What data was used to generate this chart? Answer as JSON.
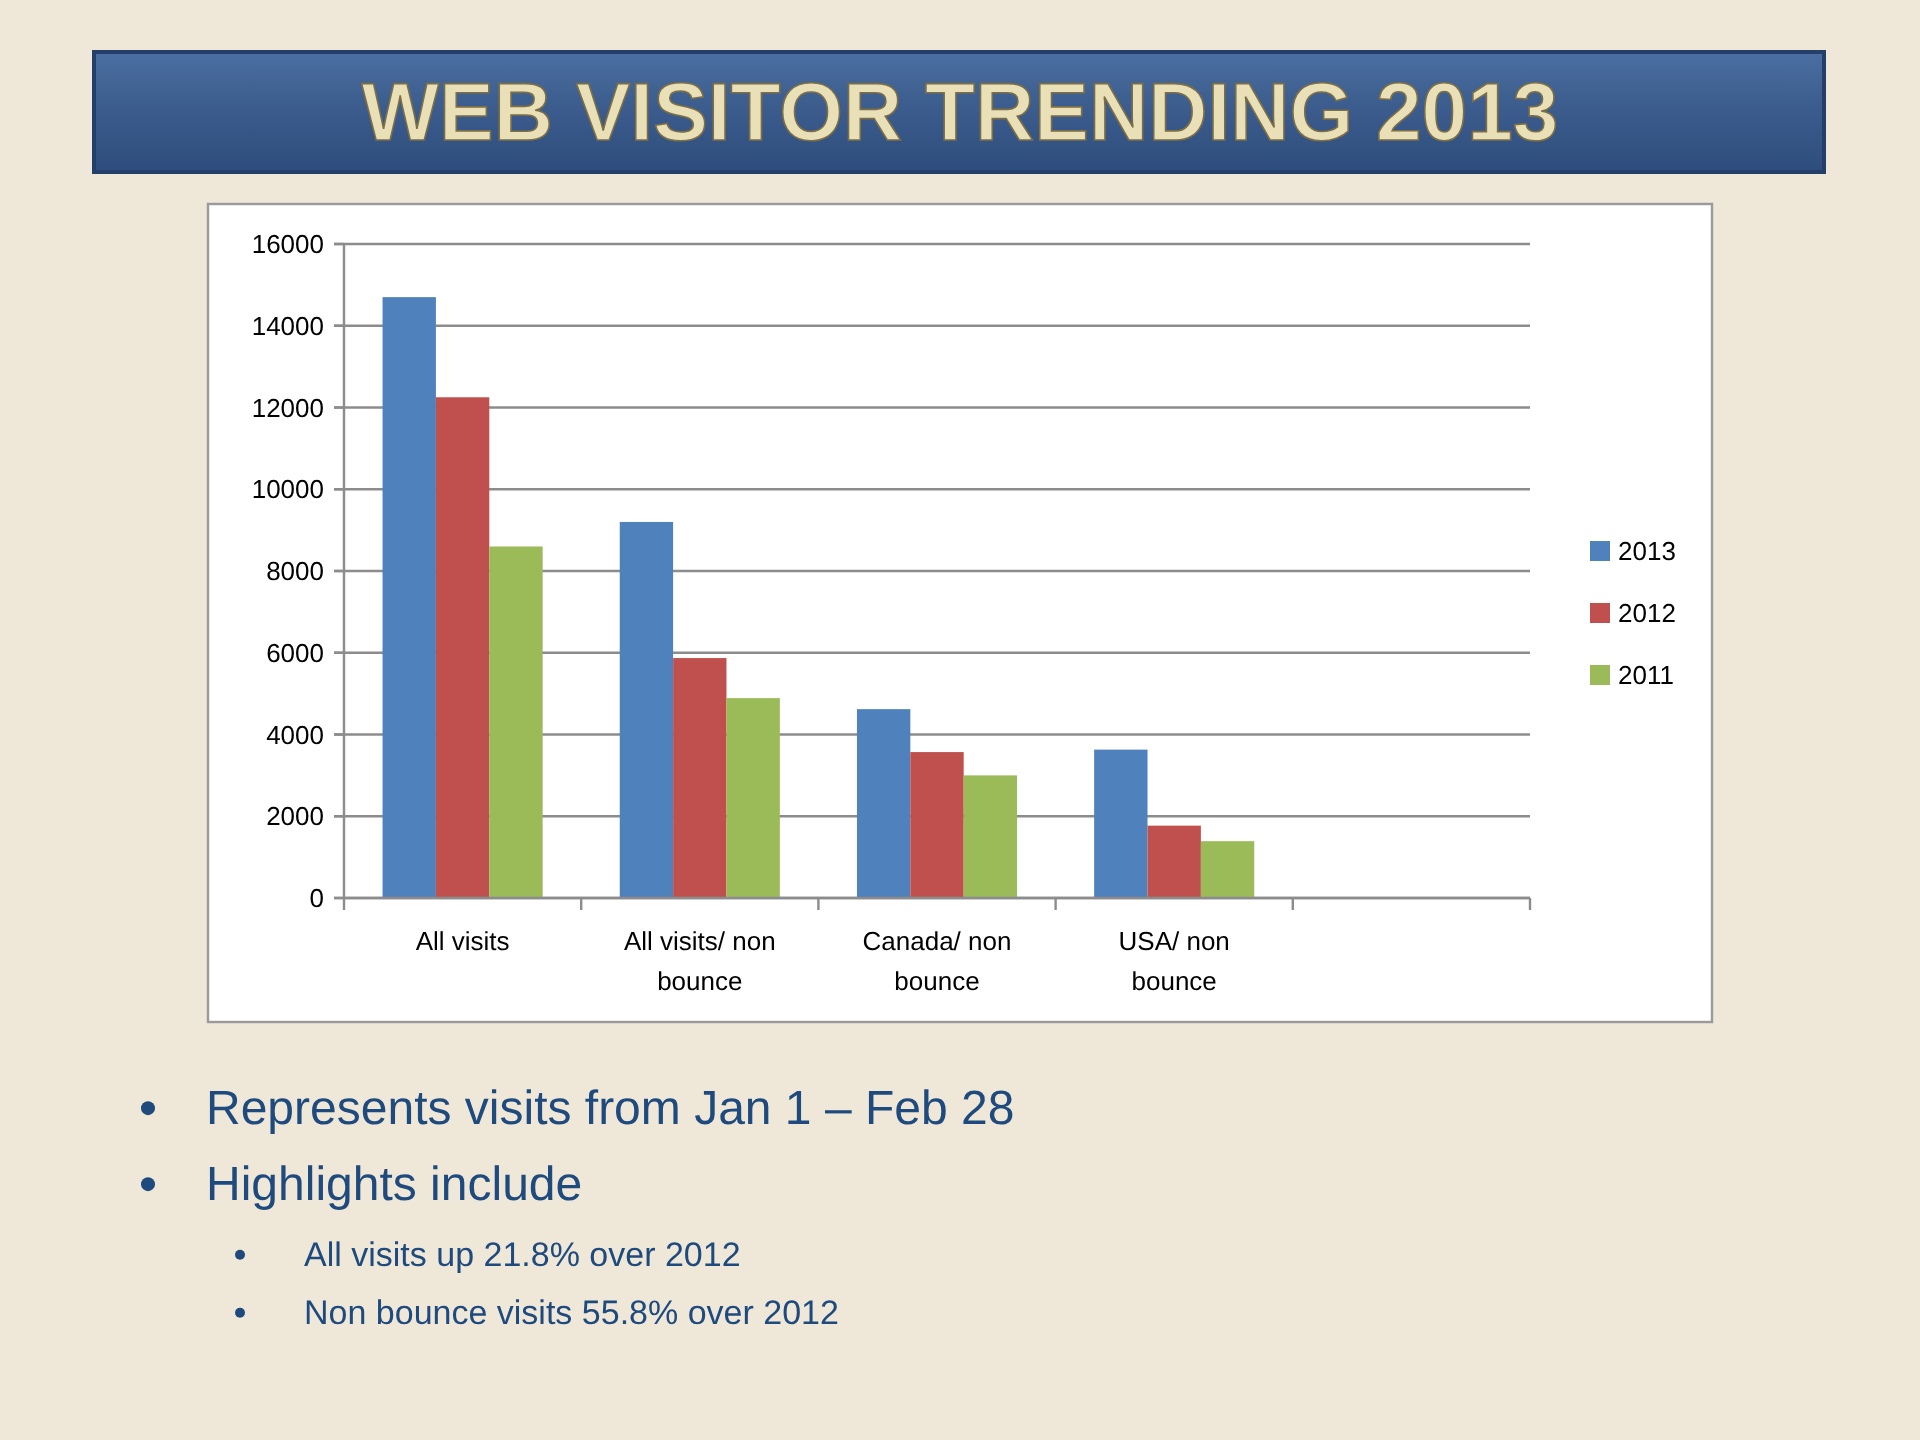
{
  "chart_data": {
    "type": "bar",
    "title": "WEB VISITOR TRENDING 2013",
    "categories": [
      "All visits",
      "All visits/ non bounce",
      "Canada/ non bounce",
      "USA/ non bounce",
      null
    ],
    "series": [
      {
        "name": "2013",
        "color": "#4f81bd",
        "values": [
          14700,
          9200,
          4620,
          3630,
          null
        ]
      },
      {
        "name": "2012",
        "color": "#c0504d",
        "values": [
          12250,
          5870,
          3570,
          1770,
          null
        ]
      },
      {
        "name": "2011",
        "color": "#9bbb59",
        "values": [
          8600,
          4890,
          3000,
          1390,
          null
        ]
      }
    ],
    "ylim": [
      0,
      16000
    ],
    "yticks": [
      0,
      2000,
      4000,
      6000,
      8000,
      10000,
      12000,
      14000,
      16000
    ],
    "grid": "y",
    "legend": "right",
    "annotations": [
      "Represents visits from Jan 1 – Feb 28",
      "Highlights include",
      "All visits up 21.8% over 2012",
      "Non bounce visits 55.8% over 2012"
    ]
  }
}
